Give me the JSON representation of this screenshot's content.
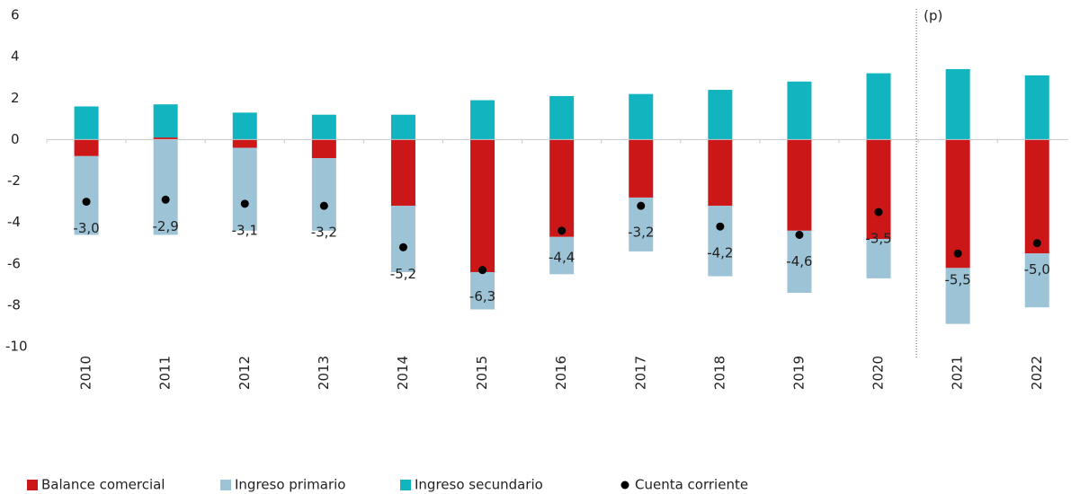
{
  "chart_data": {
    "type": "bar",
    "stacked": true,
    "categories": [
      "2010",
      "2011",
      "2012",
      "2013",
      "2014",
      "2015",
      "2016",
      "2017",
      "2018",
      "2019",
      "2020",
      "2021",
      "2022"
    ],
    "series": [
      {
        "name": "Balance comercial",
        "color": "#cc1719",
        "values": [
          -0.8,
          0.1,
          -0.4,
          -0.9,
          -3.2,
          -6.4,
          -4.7,
          -2.8,
          -3.2,
          -4.4,
          -4.8,
          -6.2,
          -5.5
        ]
      },
      {
        "name": "Ingreso primario",
        "color": "#9dc3d6",
        "values": [
          -3.8,
          -4.6,
          -4.0,
          -3.5,
          -3.2,
          -1.8,
          -1.8,
          -2.6,
          -3.4,
          -3.0,
          -1.9,
          -2.7,
          -2.6
        ]
      },
      {
        "name": "Ingreso secundario",
        "color": "#12b5bf",
        "values": [
          1.6,
          1.6,
          1.3,
          1.2,
          1.2,
          1.9,
          2.1,
          2.2,
          2.4,
          2.8,
          3.2,
          3.4,
          3.1
        ]
      },
      {
        "name": "Cuenta corriente",
        "type": "scatter",
        "color": "#000000",
        "values": [
          -3.0,
          -2.9,
          -3.1,
          -3.2,
          -5.2,
          -6.3,
          -4.4,
          -3.2,
          -4.2,
          -4.6,
          -3.5,
          -5.5,
          -5.0
        ],
        "value_labels": [
          "-3,0",
          "-2,9",
          "-3,1",
          "-3,2",
          "-5,2",
          "-6,3",
          "-4,4",
          "-3,2",
          "-4,2",
          "-4,6",
          "-3,5",
          "-5,5",
          "-5,0"
        ]
      }
    ],
    "annotation": {
      "text": "(p)",
      "x": "2021"
    },
    "ylim": [
      -10,
      6
    ],
    "yticks": [
      -10,
      -8,
      -6,
      -4,
      -2,
      0,
      2,
      4,
      6
    ],
    "grid": false,
    "legend": "bottom"
  }
}
